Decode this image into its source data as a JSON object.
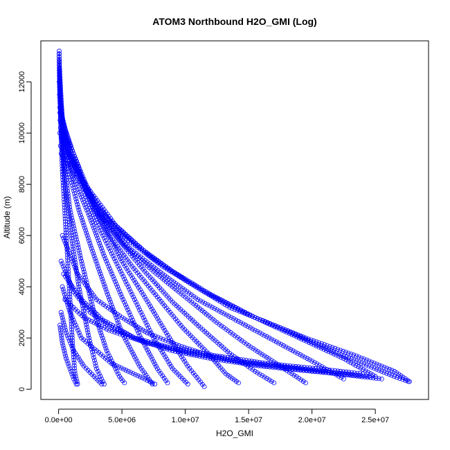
{
  "chart_data": {
    "type": "scatter",
    "title": "ATOM3 Northbound H2O_GMI (Log)",
    "xlabel": "H2O_GMI",
    "ylabel": "Altitude (m)",
    "xlim": [
      -1400000,
      29200000
    ],
    "ylim": [
      -400,
      13600
    ],
    "x_ticks": [
      0,
      5000000,
      10000000,
      15000000,
      20000000,
      25000000
    ],
    "x_tick_labels": [
      "0.0e+00",
      "5.0e+06",
      "1.0e+07",
      "1.5e+07",
      "2.0e+07",
      "2.5e+07"
    ],
    "y_ticks": [
      0,
      2000,
      4000,
      6000,
      8000,
      10000,
      12000
    ],
    "y_tick_labels": [
      "0",
      "2000",
      "4000",
      "6000",
      "8000",
      "10000",
      "12000"
    ],
    "series_color": "#0000ff",
    "marker": "open-circle",
    "connected": true,
    "grid": false,
    "legend": "none",
    "series": [
      {
        "x": [
          50000,
          80000,
          150000,
          300000,
          600000,
          900000,
          1100000,
          1300000,
          1500000
        ],
        "y": [
          13200,
          12000,
          10500,
          8500,
          6000,
          3500,
          1800,
          600,
          200
        ]
      },
      {
        "x": [
          40000,
          70000,
          200000,
          500000,
          1000000,
          1600000,
          2400000,
          3000000,
          3600000
        ],
        "y": [
          13100,
          11800,
          10000,
          8000,
          6000,
          4000,
          2000,
          800,
          200
        ]
      },
      {
        "x": [
          60000,
          150000,
          400000,
          900000,
          1800000,
          2800000,
          3800000,
          4800000,
          5200000
        ],
        "y": [
          12800,
          11000,
          9000,
          7000,
          5000,
          3000,
          1500,
          500,
          250
        ]
      },
      {
        "x": [
          80000,
          300000,
          800000,
          1600000,
          2600000,
          3800000,
          5000000,
          6400000,
          7400000
        ],
        "y": [
          12500,
          10500,
          8500,
          7000,
          5500,
          3800,
          2200,
          900,
          200
        ]
      },
      {
        "x": [
          50000,
          400000,
          1200000,
          2400000,
          3600000,
          5000000,
          6500000,
          7800000,
          8600000
        ],
        "y": [
          12000,
          10000,
          8200,
          6800,
          5200,
          3600,
          2000,
          800,
          250
        ]
      },
      {
        "x": [
          70000,
          600000,
          1800000,
          3000000,
          4500000,
          6000000,
          7500000,
          9000000,
          10200000
        ],
        "y": [
          11500,
          9500,
          8000,
          6500,
          5000,
          3500,
          2000,
          800,
          200
        ]
      },
      {
        "x": [
          100000,
          1000000,
          2200000,
          3500000,
          5000000,
          6800000,
          8500000,
          10200000,
          11500000
        ],
        "y": [
          11000,
          9200,
          7800,
          6400,
          5000,
          3600,
          2200,
          900,
          100
        ]
      },
      {
        "x": [
          100000,
          1300000,
          2600000,
          4000000,
          5800000,
          7800000,
          9800000,
          11800000,
          13200000,
          14200000
        ],
        "y": [
          10800,
          9000,
          7200,
          6000,
          4800,
          3600,
          2400,
          1400,
          600,
          250
        ]
      },
      {
        "x": [
          120000,
          1500000,
          3000000,
          4800000,
          6800000,
          9000000,
          11200000,
          13500000,
          15500000,
          17000000
        ],
        "y": [
          10500,
          8800,
          7000,
          5800,
          4600,
          3400,
          2400,
          1400,
          700,
          250
        ]
      },
      {
        "x": [
          150000,
          1600000,
          3200000,
          5200000,
          7500000,
          10000000,
          12500000,
          15000000,
          17500000,
          19500000
        ],
        "y": [
          10200,
          8500,
          6800,
          5600,
          4600,
          3600,
          2600,
          1700,
          900,
          250
        ]
      },
      {
        "x": [
          100000,
          1800000,
          3500000,
          5600000,
          8200000,
          11000000,
          14000000,
          17000000,
          20000000,
          22500000
        ],
        "y": [
          10000,
          8200,
          6700,
          5500,
          4500,
          3500,
          2700,
          1900,
          1100,
          400
        ]
      },
      {
        "x": [
          200000,
          2000000,
          3800000,
          6200000,
          9000000,
          12000000,
          15500000,
          19000000,
          22500000,
          25000000
        ],
        "y": [
          9800,
          8000,
          6700,
          5600,
          4600,
          3700,
          2800,
          2000,
          1200,
          500
        ]
      },
      {
        "x": [
          150000,
          2400000,
          4500000,
          7200000,
          10200000,
          13500000,
          17500000,
          21500000,
          24500000,
          26500000,
          27600000
        ],
        "y": [
          9500,
          7800,
          6400,
          5200,
          4200,
          3200,
          2400,
          1500,
          900,
          500,
          300
        ]
      },
      {
        "x": [
          200000,
          2600000,
          5000000,
          8200000,
          11500000,
          15500000,
          19500000,
          23500000,
          26500000,
          27700000
        ],
        "y": [
          9200,
          7400,
          6000,
          4800,
          3800,
          2800,
          2000,
          1300,
          700,
          300
        ]
      },
      {
        "x": [
          300000,
          1500000,
          3000000,
          5000000,
          7000000,
          9500000,
          12000000,
          15000000,
          18500000,
          22000000,
          25500000
        ],
        "y": [
          6000,
          4500,
          3500,
          2800,
          2200,
          1700,
          1300,
          1000,
          800,
          600,
          400
        ]
      },
      {
        "x": [
          200000,
          1200000,
          2500000,
          4200000,
          6500000,
          9000000,
          12000000,
          16000000,
          20000000,
          24500000
        ],
        "y": [
          5000,
          3800,
          3000,
          2400,
          1900,
          1500,
          1200,
          900,
          700,
          500
        ]
      },
      {
        "x": [
          400000,
          1800000,
          3500000,
          6000000,
          9000000,
          12500000,
          16500000,
          20500000,
          24000000
        ],
        "y": [
          4500,
          3500,
          2700,
          2000,
          1600,
          1300,
          1000,
          800,
          600
        ]
      },
      {
        "x": [
          500000,
          2000000,
          4000000,
          7000000,
          10500000,
          14000000,
          17500000,
          21000000
        ],
        "y": [
          3500,
          2800,
          2300,
          1800,
          1400,
          1100,
          900,
          700
        ]
      },
      {
        "x": [
          300000,
          900000,
          1800000,
          3000000,
          4200000,
          5500000,
          6800000,
          7600000
        ],
        "y": [
          4000,
          3000,
          2000,
          1500,
          1000,
          700,
          400,
          200
        ]
      },
      {
        "x": [
          200000,
          600000,
          1200000,
          2000000,
          2800000,
          3400000
        ],
        "y": [
          3000,
          2200,
          1500,
          900,
          500,
          200
        ]
      },
      {
        "x": [
          100000,
          300000,
          600000,
          900000,
          1200000,
          1400000
        ],
        "y": [
          2500,
          1800,
          1200,
          800,
          400,
          200
        ]
      }
    ]
  }
}
